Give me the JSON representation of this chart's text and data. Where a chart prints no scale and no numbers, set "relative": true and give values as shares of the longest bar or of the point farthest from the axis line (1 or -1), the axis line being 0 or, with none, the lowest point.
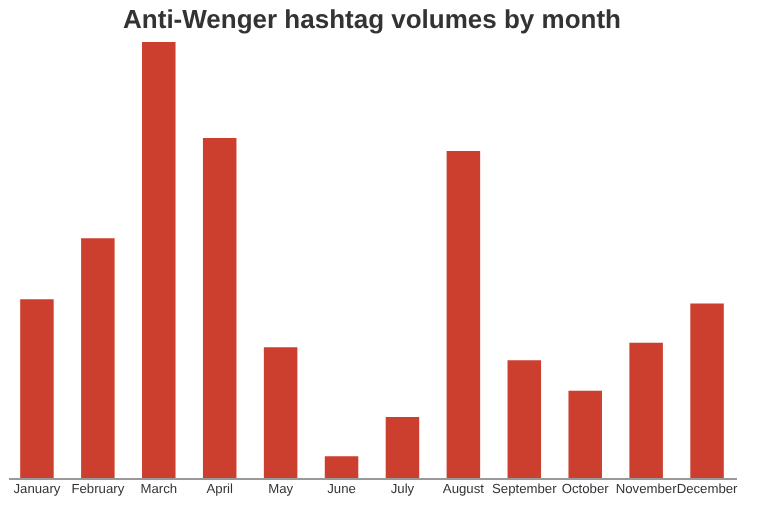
{
  "chart_data": {
    "type": "bar",
    "title": "Anti-Wenger hashtag volumes by month",
    "categories": [
      "January",
      "February",
      "March",
      "April",
      "May",
      "June",
      "July",
      "August",
      "September",
      "October",
      "November",
      "December"
    ],
    "values": [
      0.41,
      0.55,
      1,
      0.78,
      0.3,
      0.05,
      0.14,
      0.75,
      0.27,
      0.2,
      0.31,
      0.4
    ],
    "color": "#cc3f2f",
    "relative": true
  }
}
